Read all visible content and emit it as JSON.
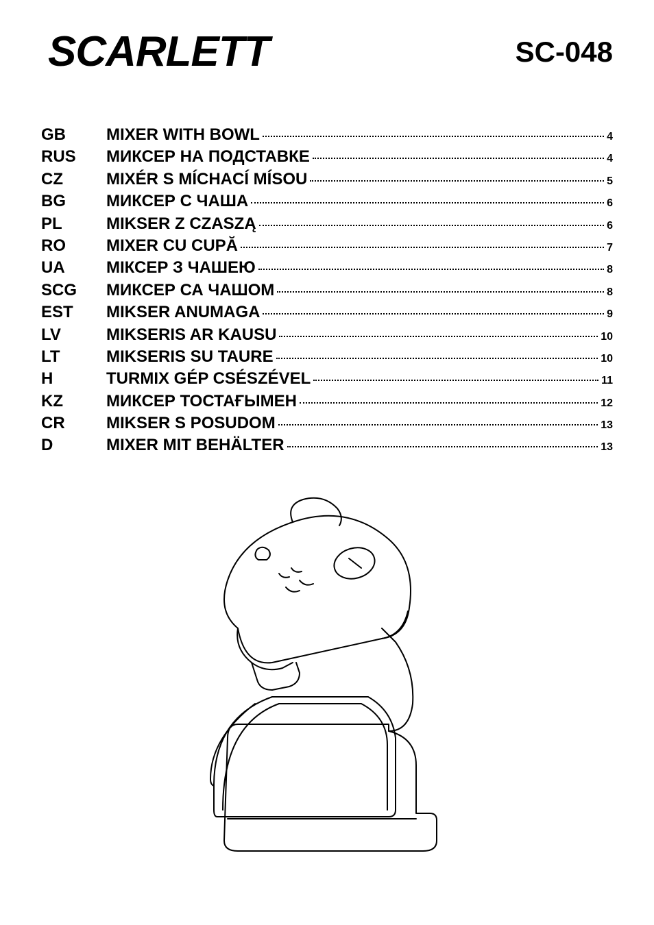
{
  "header": {
    "brand": "SCARLETT",
    "model": "SC-048"
  },
  "toc": [
    {
      "code": "GB",
      "title": "MIXER WITH BOWL",
      "page": "4"
    },
    {
      "code": "RUS",
      "title": "МИКСЕР НА ПОДСТАВКЕ",
      "page": "4"
    },
    {
      "code": "CZ",
      "title": "MIXÉR S MÍCHACÍ MÍSOU",
      "page": "5"
    },
    {
      "code": "BG",
      "title": "МИКСЕР С ЧАША",
      "page": "6"
    },
    {
      "code": "PL",
      "title": "MIKSER Z CZASZĄ",
      "page": "6"
    },
    {
      "code": "RO",
      "title": "MIXER CU CUPĂ",
      "page": "7"
    },
    {
      "code": "UA",
      "title": "МІКСЕР З ЧАШЕЮ",
      "page": "8"
    },
    {
      "code": "SCG",
      "title": "МИКСЕР СА ЧАШОМ",
      "page": "8"
    },
    {
      "code": "EST",
      "title": "MIKSER ANUMAGA",
      "page": "9"
    },
    {
      "code": "LV",
      "title": "MIKSERIS AR KAUSU",
      "page": "10"
    },
    {
      "code": "LT",
      "title": "MIKSERIS SU TAURE",
      "page": "10"
    },
    {
      "code": "H",
      "title": "TURMIX GÉP CSÉSZÉVEL",
      "page": "11"
    },
    {
      "code": "KZ",
      "title": "МИКСЕР ТОСТАҒЫМЕН",
      "page": "12"
    },
    {
      "code": "CR",
      "title": "MIKSER S POSUDOM",
      "page": "13"
    },
    {
      "code": "D",
      "title": "MIXER MIT BEHÄLTER",
      "page": "13"
    }
  ],
  "illustration": {
    "stroke": "#000000",
    "stroke_width": 2,
    "fill": "#ffffff"
  }
}
